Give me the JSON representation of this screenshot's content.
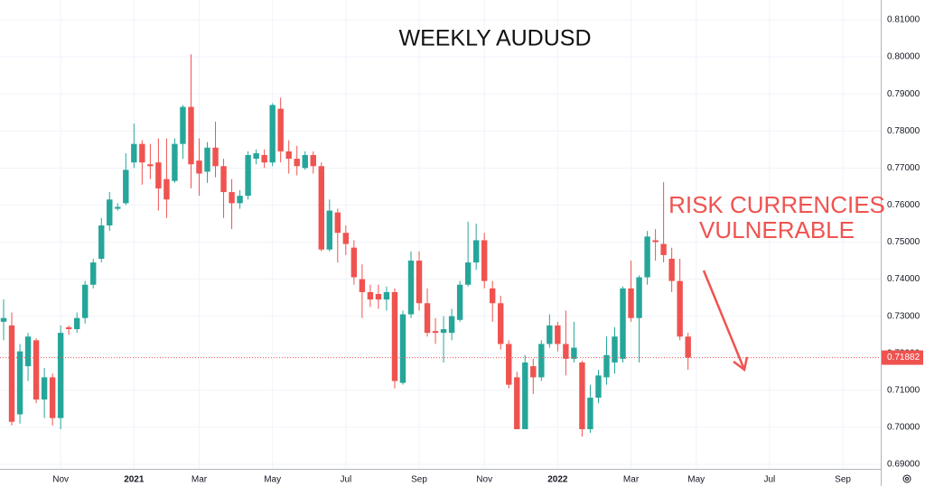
{
  "chart_data": {
    "type": "candlestick",
    "title": "WEEKLY AUDUSD",
    "annotation": [
      "RISK CURRENCIES",
      "VULNERABLE"
    ],
    "categories": [
      null,
      null,
      null,
      null,
      null,
      null,
      null,
      "Nov",
      null,
      null,
      null,
      null,
      null,
      null,
      null,
      null,
      "2021",
      null,
      null,
      null,
      null,
      null,
      null,
      null,
      "Mar",
      null,
      null,
      null,
      null,
      null,
      null,
      null,
      null,
      "May",
      null,
      null,
      null,
      null,
      null,
      null,
      null,
      null,
      "Jul",
      null,
      null,
      null,
      null,
      null,
      null,
      null,
      null,
      "Sep",
      null,
      null,
      null,
      null,
      null,
      null,
      null,
      "Nov",
      null,
      null,
      null,
      null,
      null,
      null,
      null,
      null,
      "2022",
      null,
      null,
      null,
      null,
      null,
      null,
      null,
      null,
      "Mar",
      null,
      null,
      null,
      null,
      null,
      null,
      null,
      "May",
      null,
      null,
      null,
      null,
      null,
      null,
      null,
      null,
      "Jul",
      null,
      null,
      null,
      null,
      null,
      null,
      null,
      null,
      "Sep",
      null,
      null,
      null,
      null
    ],
    "open": [
      0.7285,
      0.7275,
      0.7035,
      0.7165,
      0.7235,
      0.7075,
      0.7135,
      0.7025,
      0.727,
      0.7265,
      0.7295,
      0.7385,
      0.7455,
      0.7545,
      0.759,
      0.7605,
      0.7715,
      0.7765,
      0.771,
      0.7715,
      0.767,
      0.7665,
      0.7765,
      0.7865,
      0.772,
      0.769,
      0.7755,
      0.7705,
      0.7635,
      0.7605,
      0.7625,
      0.7725,
      0.7735,
      0.7715,
      0.786,
      0.7745,
      0.7725,
      0.77,
      0.7735,
      0.7705,
      0.748,
      0.758,
      0.7525,
      0.7485,
      0.74,
      0.7365,
      0.736,
      0.7345,
      0.7365,
      0.712,
      0.7305,
      0.745,
      0.7335,
      0.726,
      0.7255,
      0.7255,
      0.729,
      0.7385,
      0.7445,
      0.7505,
      0.7375,
      0.7335,
      0.7225,
      0.7135,
      0.6995,
      0.7165,
      0.7135,
      0.7225,
      0.7275,
      0.7225,
      0.7185,
      0.7175,
      0.6995,
      0.708,
      0.7135,
      0.7175,
      0.7185,
      0.7375,
      0.7295,
      0.7405,
      0.7505,
      0.7495,
      0.7455,
      0.7395,
      0.7245,
      null,
      null,
      null,
      null,
      null,
      null,
      null,
      null,
      null,
      null,
      null,
      null,
      null,
      null,
      null,
      null,
      null,
      null,
      null,
      null,
      null,
      null,
      null
    ],
    "high": [
      0.7345,
      0.731,
      0.7225,
      0.7255,
      0.724,
      0.716,
      0.7145,
      0.7275,
      0.7275,
      0.731,
      0.7395,
      0.7455,
      0.7565,
      0.7635,
      0.7605,
      0.774,
      0.782,
      0.7775,
      0.7765,
      0.778,
      0.778,
      0.778,
      0.787,
      0.8007,
      0.778,
      0.777,
      0.7825,
      0.7725,
      0.767,
      0.764,
      0.7745,
      0.775,
      0.775,
      0.7875,
      0.789,
      0.7775,
      0.776,
      0.7745,
      0.7745,
      0.7715,
      0.7615,
      0.759,
      0.7545,
      0.7505,
      0.744,
      0.7385,
      0.7385,
      0.738,
      0.7375,
      0.7315,
      0.7475,
      0.7475,
      0.7375,
      0.7295,
      0.73,
      0.732,
      0.7395,
      0.7555,
      0.755,
      0.7525,
      0.7395,
      0.7355,
      0.7235,
      0.715,
      0.7195,
      0.7185,
      0.7235,
      0.7305,
      0.7285,
      0.7315,
      0.7285,
      0.718,
      0.7115,
      0.7155,
      0.7245,
      0.727,
      0.738,
      0.745,
      0.741,
      0.753,
      0.7535,
      0.7662,
      0.7485,
      0.7455,
      0.7255,
      null,
      null,
      null,
      null,
      null,
      null,
      null,
      null,
      null,
      null,
      null,
      null,
      null,
      null,
      null,
      null,
      null,
      null,
      null,
      null,
      null,
      null,
      null
    ],
    "low": [
      0.7235,
      0.7005,
      0.701,
      0.7125,
      0.7065,
      0.7025,
      0.7005,
      0.6995,
      0.725,
      0.7255,
      0.728,
      0.7375,
      0.7445,
      0.753,
      0.7585,
      0.76,
      0.77,
      0.7655,
      0.767,
      0.7585,
      0.7565,
      0.766,
      0.7725,
      0.7645,
      0.7625,
      0.766,
      0.7675,
      0.7565,
      0.7535,
      0.759,
      0.7615,
      0.771,
      0.77,
      0.7705,
      0.7715,
      0.7685,
      0.768,
      0.7695,
      0.7685,
      0.7475,
      0.7475,
      0.7445,
      0.7465,
      0.7385,
      0.7295,
      0.7325,
      0.732,
      0.7315,
      0.7105,
      0.7115,
      0.7295,
      0.7315,
      0.7245,
      0.7225,
      0.7175,
      0.7235,
      0.7285,
      0.738,
      0.7425,
      0.7375,
      0.7285,
      0.721,
      0.7105,
      0.6995,
      0.6995,
      0.709,
      0.7125,
      0.7215,
      0.7205,
      0.714,
      0.7175,
      0.6975,
      0.6985,
      0.7065,
      0.7115,
      0.7145,
      0.7175,
      0.7285,
      0.7175,
      0.7385,
      0.745,
      0.7445,
      0.7365,
      0.7235,
      0.7155,
      null,
      null,
      null,
      null,
      null,
      null,
      null,
      null,
      null,
      null,
      null,
      null,
      null,
      null,
      null,
      null,
      null,
      null,
      null,
      null,
      null,
      null,
      null
    ],
    "close": [
      0.7295,
      0.7015,
      0.7205,
      0.7245,
      0.7075,
      0.7135,
      0.7025,
      0.7255,
      0.7265,
      0.7295,
      0.7385,
      0.7445,
      0.7545,
      0.7615,
      0.7595,
      0.7695,
      0.7765,
      0.7715,
      0.7705,
      0.7645,
      0.7615,
      0.7765,
      0.7865,
      0.771,
      0.7685,
      0.7755,
      0.7705,
      0.7635,
      0.7605,
      0.7625,
      0.7735,
      0.774,
      0.7715,
      0.787,
      0.7745,
      0.7725,
      0.7705,
      0.7735,
      0.7705,
      0.748,
      0.7585,
      0.7525,
      0.7495,
      0.7405,
      0.7365,
      0.7345,
      0.7345,
      0.7365,
      0.7125,
      0.7305,
      0.745,
      0.7335,
      0.7255,
      0.7255,
      0.7265,
      0.73,
      0.7385,
      0.7445,
      0.7505,
      0.7395,
      0.7335,
      0.7225,
      0.7115,
      0.6995,
      0.7175,
      0.7135,
      0.7225,
      0.7275,
      0.7225,
      0.7185,
      0.7215,
      0.6995,
      0.708,
      0.714,
      0.7195,
      0.7245,
      0.7375,
      0.7295,
      0.7405,
      0.7515,
      0.75,
      0.7465,
      0.7395,
      0.7245,
      0.71882,
      null,
      null,
      null,
      null,
      null,
      null,
      null,
      null,
      null,
      null,
      null,
      null,
      null,
      null,
      null,
      null,
      null,
      null,
      null,
      null,
      null,
      null,
      null
    ],
    "up_color": "#26a69a",
    "down_color": "#ef5350",
    "last_price": 0.71882,
    "ylim": [
      0.69,
      0.81
    ],
    "yticks": [
      {
        "value": 0.69,
        "label": "0.69000"
      },
      {
        "value": 0.7,
        "label": "0.70000"
      },
      {
        "value": 0.71,
        "label": "0.71000"
      },
      {
        "value": 0.72,
        "label": "0.72000"
      },
      {
        "value": 0.73,
        "label": "0.73000"
      },
      {
        "value": 0.74,
        "label": "0.74000"
      },
      {
        "value": 0.75,
        "label": "0.75000"
      },
      {
        "value": 0.76,
        "label": "0.76000"
      },
      {
        "value": 0.77,
        "label": "0.77000"
      },
      {
        "value": 0.78,
        "label": "0.78000"
      },
      {
        "value": 0.79,
        "label": "0.79000"
      },
      {
        "value": 0.8,
        "label": "0.80000"
      },
      {
        "value": 0.81,
        "label": "0.81000"
      }
    ],
    "grid": true
  }
}
